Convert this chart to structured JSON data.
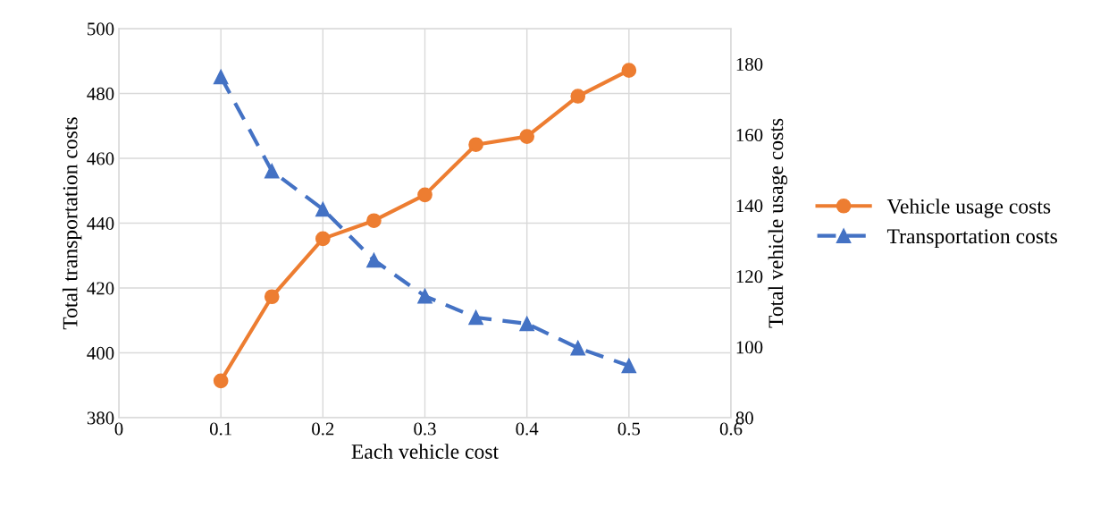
{
  "chart_data": {
    "type": "line",
    "xlabel": "Each vehicle cost",
    "ylabel": "Total transportation costs",
    "y2label": "Total vehicle usage costs",
    "x": [
      0.1,
      0.15,
      0.2,
      0.25,
      0.3,
      0.35,
      0.4,
      0.45,
      0.5
    ],
    "series": [
      {
        "name": "Vehicle usage costs",
        "color": "#ed7d31",
        "axis": "y2",
        "marker": "circle",
        "line_style": "solid",
        "values": [
          90.4,
          114.2,
          130.6,
          135.7,
          143.0,
          157.2,
          159.5,
          170.9,
          178.2
        ]
      },
      {
        "name": "Transportation costs",
        "color": "#4472c4",
        "axis": "y",
        "marker": "triangle",
        "line_style": "dashed",
        "values": [
          485.1,
          456.1,
          444.3,
          428.6,
          417.5,
          410.9,
          409.0,
          401.5,
          396.0
        ]
      }
    ],
    "xlim": [
      0,
      0.6
    ],
    "xticks": [
      0,
      0.1,
      0.2,
      0.3,
      0.4,
      0.5,
      0.6
    ],
    "ylim": [
      380,
      500
    ],
    "yticks": [
      380,
      400,
      420,
      440,
      460,
      480,
      500
    ],
    "y2lim": [
      80,
      190
    ],
    "y2ticks": [
      80,
      100,
      120,
      140,
      160,
      180
    ],
    "grid": true,
    "legend": "right"
  }
}
